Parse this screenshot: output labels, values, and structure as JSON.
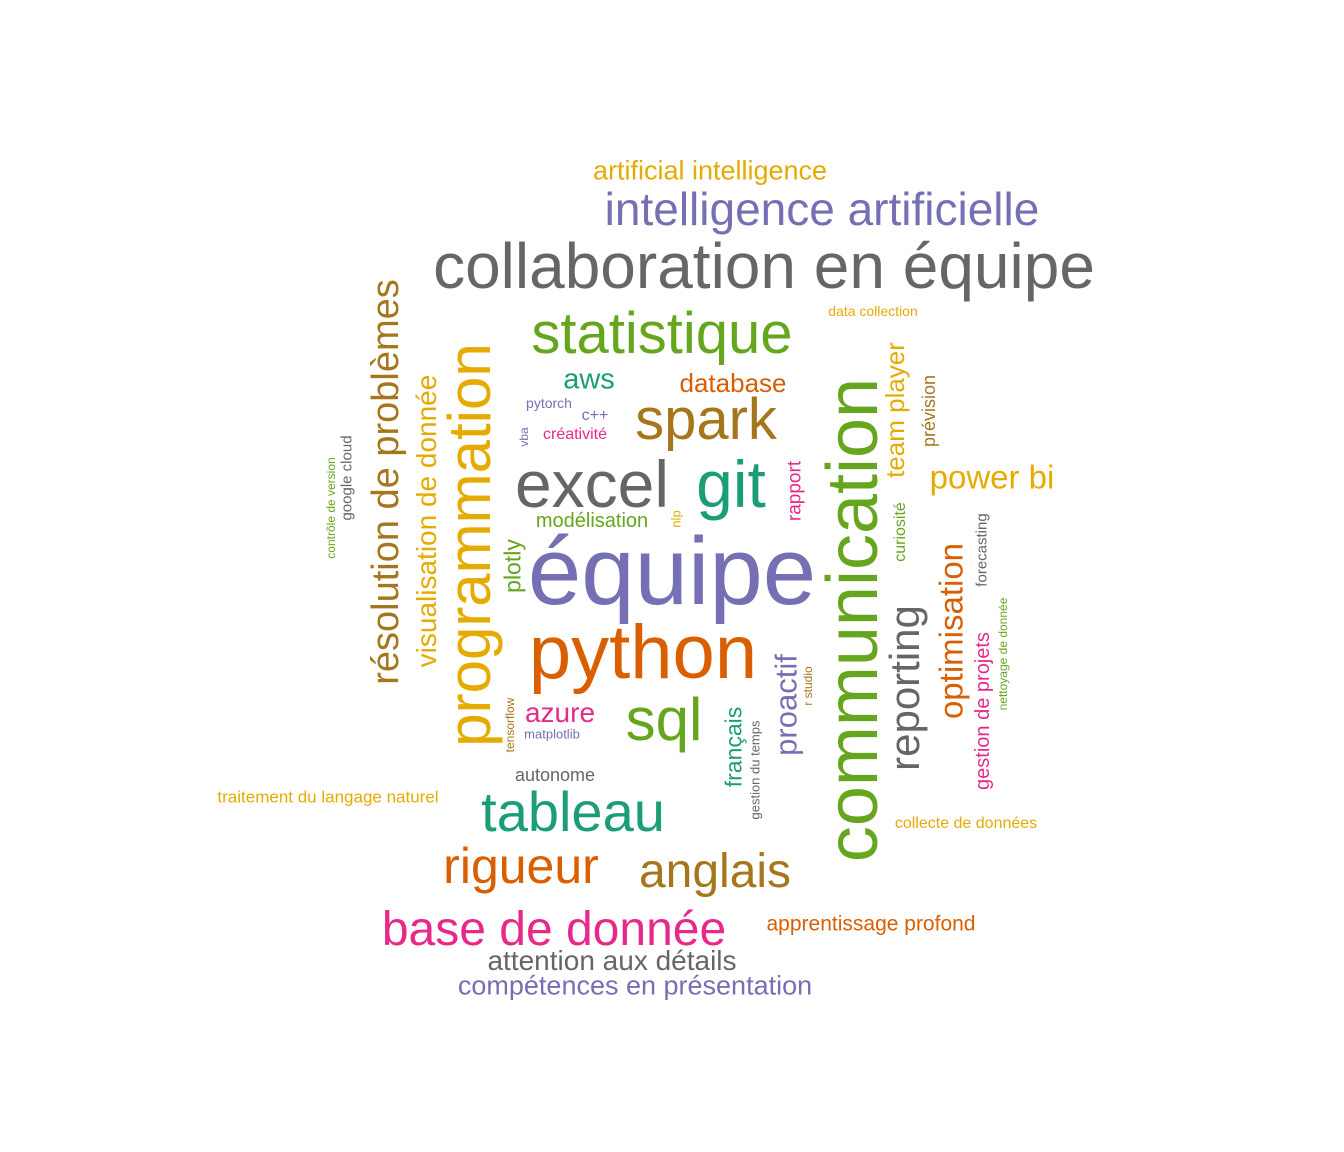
{
  "palette": {
    "purple": "#7570b3",
    "gray": "#666666",
    "orange": "#d95f02",
    "green": "#66a61e",
    "teal": "#1b9e77",
    "brown": "#a6761d",
    "gold": "#e6ab02",
    "pink": "#e7298a"
  },
  "words": [
    {
      "text": "équipe",
      "color": "purple",
      "vertical": false
    },
    {
      "text": "communication",
      "color": "green",
      "vertical": true
    },
    {
      "text": "python",
      "color": "orange",
      "vertical": false
    },
    {
      "text": "collaboration en équipe",
      "color": "gray",
      "vertical": false
    },
    {
      "text": "programmation",
      "color": "gold",
      "vertical": true
    },
    {
      "text": "excel",
      "color": "gray",
      "vertical": false
    },
    {
      "text": "git",
      "color": "teal",
      "vertical": false
    },
    {
      "text": "statistique",
      "color": "green",
      "vertical": false
    },
    {
      "text": "spark",
      "color": "brown",
      "vertical": false
    },
    {
      "text": "sql",
      "color": "green",
      "vertical": false
    },
    {
      "text": "tableau",
      "color": "teal",
      "vertical": false
    },
    {
      "text": "résolution de problèmes",
      "color": "brown",
      "vertical": true
    },
    {
      "text": "intelligence artificielle",
      "color": "purple",
      "vertical": false
    },
    {
      "text": "rigueur",
      "color": "orange",
      "vertical": false
    },
    {
      "text": "anglais",
      "color": "brown",
      "vertical": false
    },
    {
      "text": "base de donnée",
      "color": "pink",
      "vertical": false
    },
    {
      "text": "reporting",
      "color": "gray",
      "vertical": true
    },
    {
      "text": "visualisation de donnée",
      "color": "gold",
      "vertical": true
    },
    {
      "text": "optimisation",
      "color": "orange",
      "vertical": true
    },
    {
      "text": "power bi",
      "color": "gold",
      "vertical": false
    },
    {
      "text": "proactif",
      "color": "purple",
      "vertical": true
    },
    {
      "text": "team player",
      "color": "gold",
      "vertical": true
    },
    {
      "text": "attention aux détails",
      "color": "gray",
      "vertical": false
    },
    {
      "text": "compétences en présentation",
      "color": "purple",
      "vertical": false
    },
    {
      "text": "artificial intelligence",
      "color": "gold",
      "vertical": false
    },
    {
      "text": "database",
      "color": "orange",
      "vertical": false
    },
    {
      "text": "aws",
      "color": "teal",
      "vertical": false
    },
    {
      "text": "azure",
      "color": "pink",
      "vertical": false
    },
    {
      "text": "plotly",
      "color": "green",
      "vertical": true
    },
    {
      "text": "français",
      "color": "teal",
      "vertical": true
    },
    {
      "text": "gestion de projets",
      "color": "pink",
      "vertical": true
    },
    {
      "text": "apprentissage profond",
      "color": "orange",
      "vertical": false
    },
    {
      "text": "modélisation",
      "color": "green",
      "vertical": false
    },
    {
      "text": "rapport",
      "color": "pink",
      "vertical": true
    },
    {
      "text": "prévision",
      "color": "brown",
      "vertical": true
    },
    {
      "text": "traitement du langage naturel",
      "color": "gold",
      "vertical": false
    },
    {
      "text": "autonome",
      "color": "gray",
      "vertical": false
    },
    {
      "text": "curiosité",
      "color": "green",
      "vertical": true
    },
    {
      "text": "forecasting",
      "color": "gray",
      "vertical": true
    },
    {
      "text": "créativité",
      "color": "pink",
      "vertical": false
    },
    {
      "text": "collecte de données",
      "color": "gold",
      "vertical": false
    },
    {
      "text": "google cloud",
      "color": "gray",
      "vertical": true
    },
    {
      "text": "c++",
      "color": "purple",
      "vertical": false
    },
    {
      "text": "gestion du temps",
      "color": "gray",
      "vertical": true
    },
    {
      "text": "pytorch",
      "color": "purple",
      "vertical": false
    },
    {
      "text": "data collection",
      "color": "gold",
      "vertical": false
    },
    {
      "text": "nettoyage de donnée",
      "color": "green",
      "vertical": true
    },
    {
      "text": "contrôle de version",
      "color": "green",
      "vertical": true
    },
    {
      "text": "matplotlib",
      "color": "purple",
      "vertical": false
    },
    {
      "text": "tensorflow",
      "color": "brown",
      "vertical": true
    },
    {
      "text": "r studio",
      "color": "brown",
      "vertical": true
    },
    {
      "text": "nlp",
      "color": "gold",
      "vertical": true
    },
    {
      "text": "vba",
      "color": "purple",
      "vertical": true
    }
  ]
}
